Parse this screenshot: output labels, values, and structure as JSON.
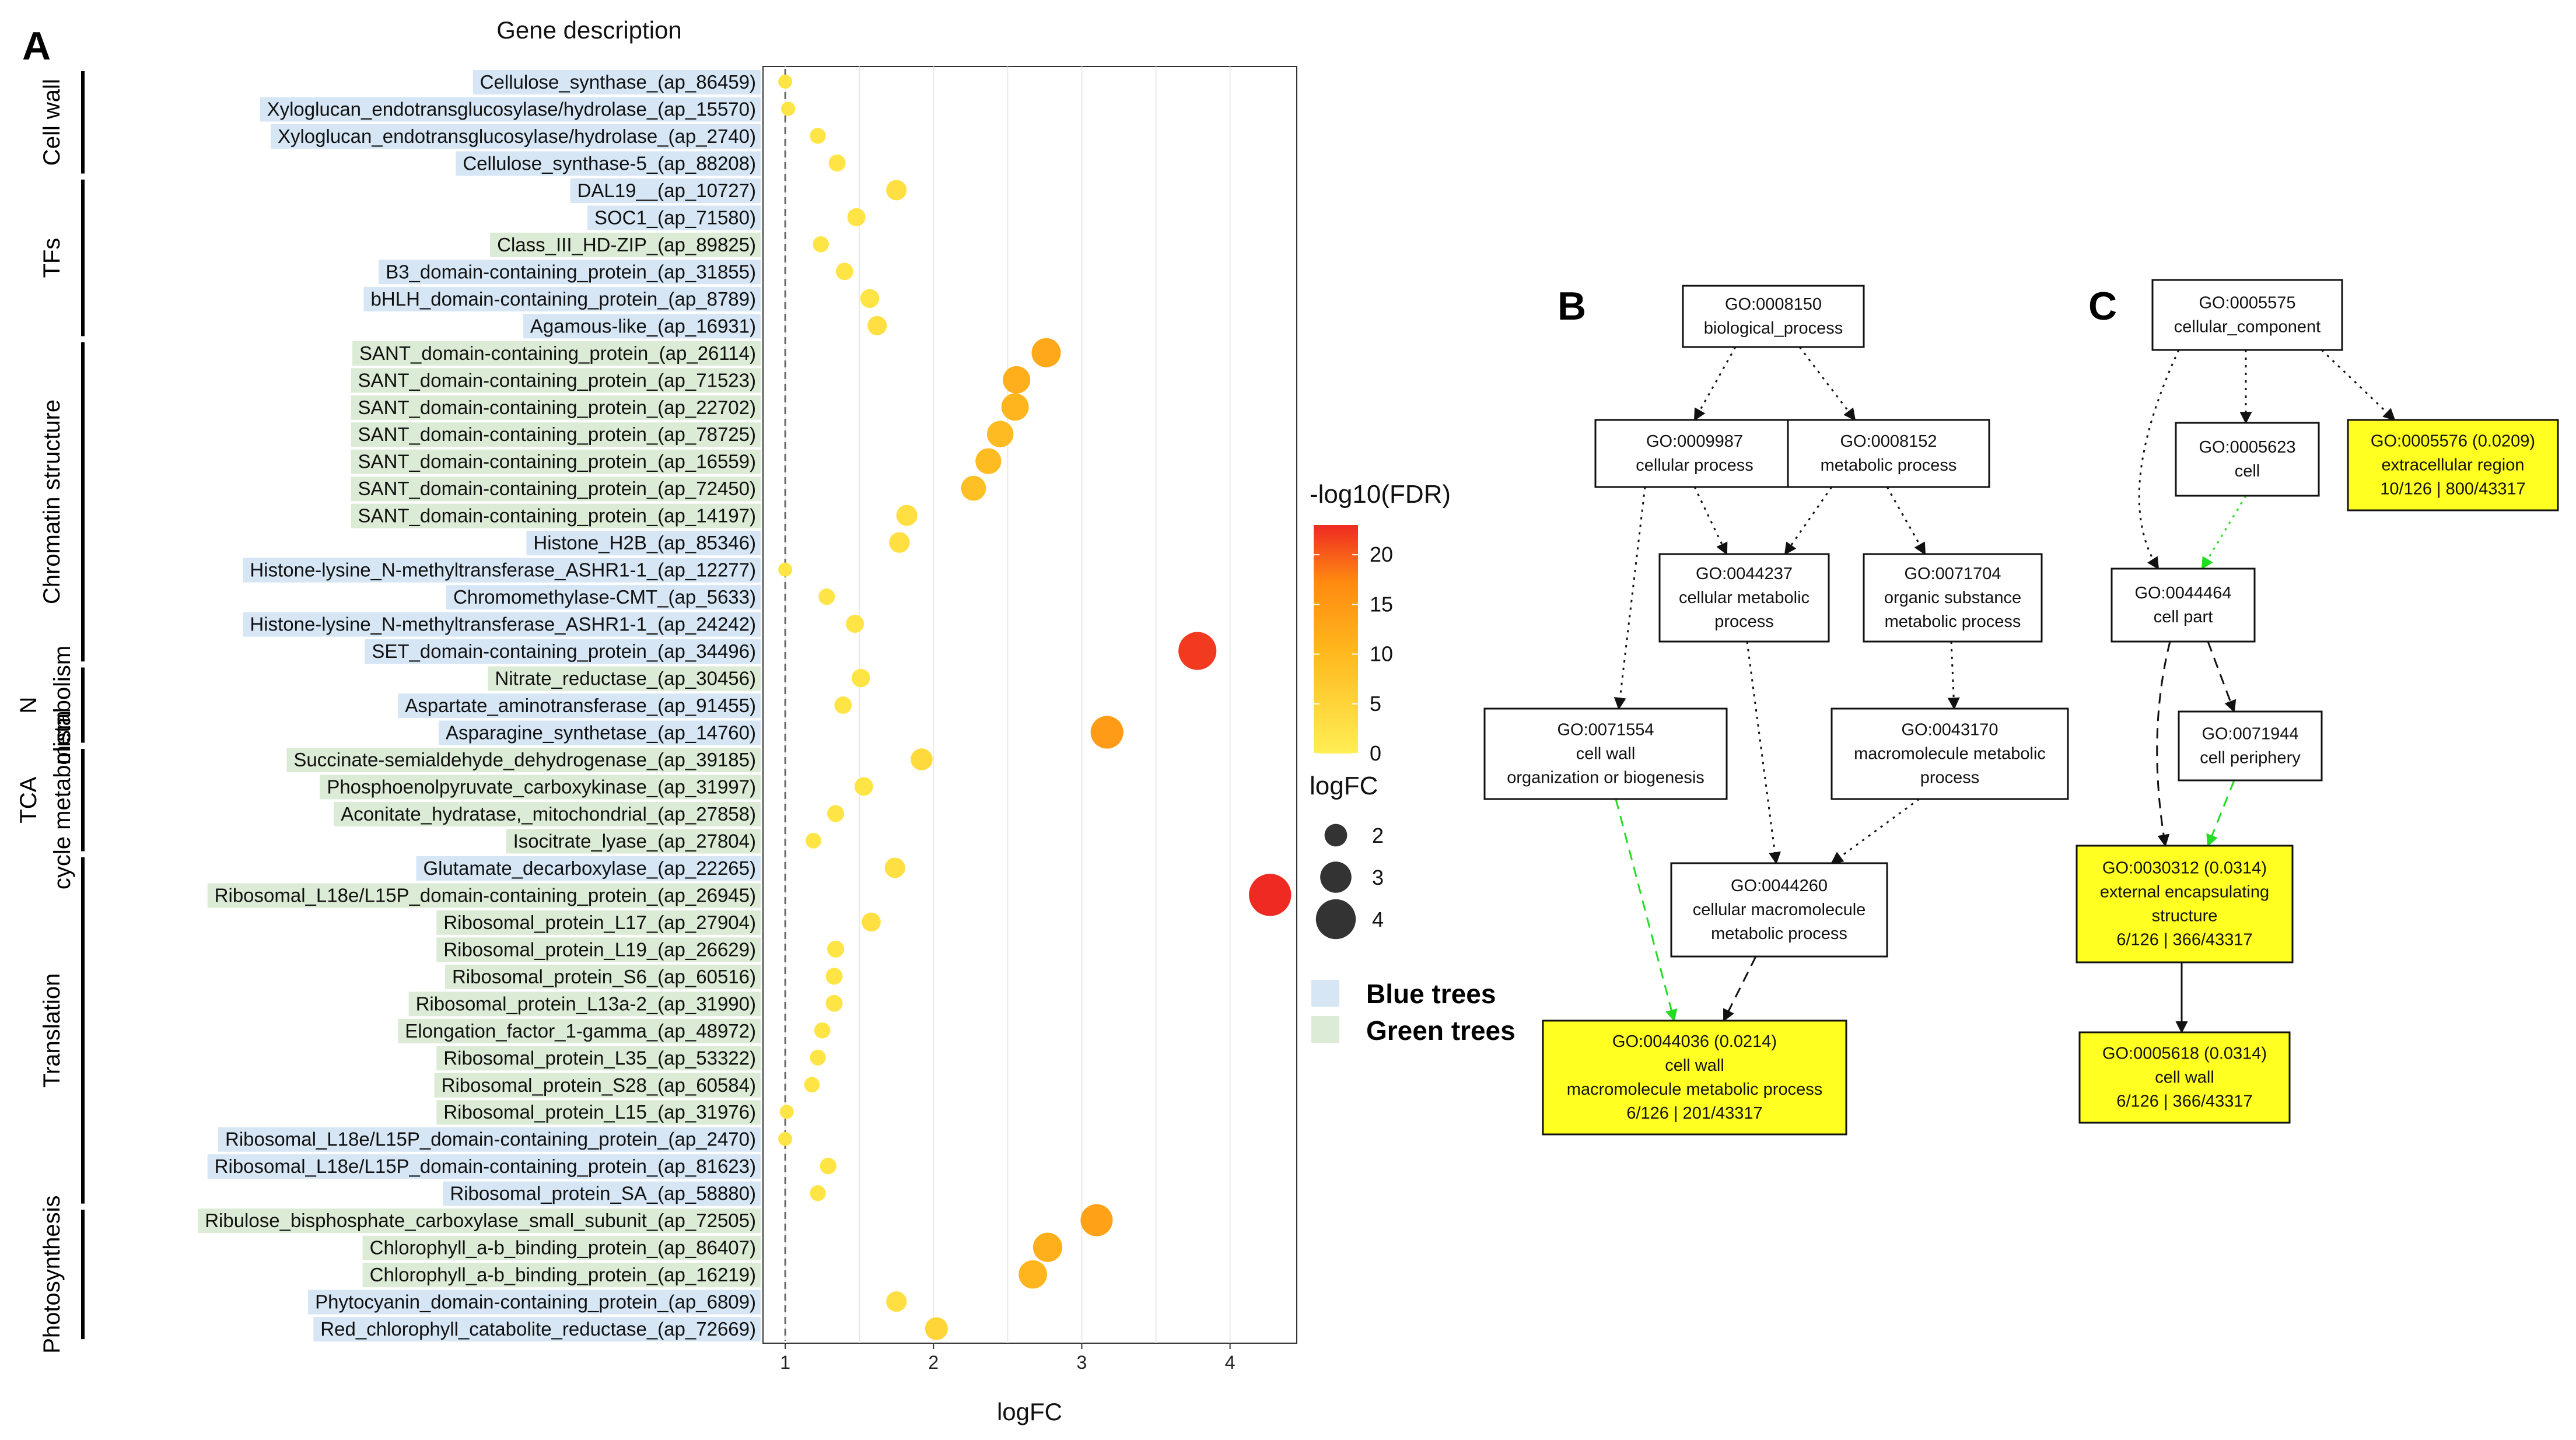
{
  "panel_a": {
    "letter": "A",
    "header": "Gene description",
    "legend": {
      "fdr_title": "-log10(FDR)",
      "fdr_ticks": [
        "20",
        "15",
        "10",
        "5",
        "0"
      ],
      "size_title": "logFC",
      "size_ticks": [
        "2",
        "3",
        "4"
      ],
      "group_blue": "Blue trees",
      "group_green": "Green trees"
    }
  },
  "chart_data": {
    "type": "scatter",
    "title": "",
    "xlabel": "logFC",
    "ylabel": "Gene description",
    "xlim": [
      0.85,
      4.45
    ],
    "x_ticks": [
      1,
      2,
      3,
      4
    ],
    "color_variable": "-log10(FDR)",
    "color_range": [
      0,
      23
    ],
    "size_variable": "logFC",
    "reference_line_x": 1,
    "categories": [
      {
        "name": "Cell wall",
        "genes": [
          {
            "label": "Cellulose_synthase_(ap_86459)",
            "group": "blue",
            "logFC": 1.0,
            "fdr": 1
          },
          {
            "label": "Xyloglucan_endotransglucosylase/hydrolase_(ap_15570)",
            "group": "blue",
            "logFC": 1.02,
            "fdr": 1
          },
          {
            "label": "Xyloglucan_endotransglucosylase/hydrolase_(ap_2740)",
            "group": "blue",
            "logFC": 1.22,
            "fdr": 1
          },
          {
            "label": "Cellulose_synthase-5_(ap_88208)",
            "group": "blue",
            "logFC": 1.35,
            "fdr": 1
          }
        ]
      },
      {
        "name": "TFs",
        "genes": [
          {
            "label": "DAL19__(ap_10727)",
            "group": "blue",
            "logFC": 1.75,
            "fdr": 2
          },
          {
            "label": "SOC1_(ap_71580)",
            "group": "blue",
            "logFC": 1.48,
            "fdr": 1
          },
          {
            "label": "Class_III_HD-ZIP_(ap_89825)",
            "group": "green",
            "logFC": 1.24,
            "fdr": 1
          },
          {
            "label": "B3_domain-containing_protein_(ap_31855)",
            "group": "blue",
            "logFC": 1.4,
            "fdr": 1
          },
          {
            "label": "bHLH_domain-containing_protein_(ap_8789)",
            "group": "blue",
            "logFC": 1.57,
            "fdr": 1
          },
          {
            "label": "Agamous-like_(ap_16931)",
            "group": "blue",
            "logFC": 1.62,
            "fdr": 2
          }
        ]
      },
      {
        "name": "Chromatin structure",
        "genes": [
          {
            "label": "SANT_domain-containing_protein_(ap_26114)",
            "group": "green",
            "logFC": 2.76,
            "fdr": 12
          },
          {
            "label": "SANT_domain-containing_protein_(ap_71523)",
            "group": "green",
            "logFC": 2.56,
            "fdr": 11
          },
          {
            "label": "SANT_domain-containing_protein_(ap_22702)",
            "group": "green",
            "logFC": 2.55,
            "fdr": 10
          },
          {
            "label": "SANT_domain-containing_protein_(ap_78725)",
            "group": "green",
            "logFC": 2.45,
            "fdr": 9
          },
          {
            "label": "SANT_domain-containing_protein_(ap_16559)",
            "group": "green",
            "logFC": 2.37,
            "fdr": 9
          },
          {
            "label": "SANT_domain-containing_protein_(ap_72450)",
            "group": "green",
            "logFC": 2.27,
            "fdr": 8
          },
          {
            "label": "SANT_domain-containing_protein_(ap_14197)",
            "group": "green",
            "logFC": 1.82,
            "fdr": 2
          },
          {
            "label": "Histone_H2B_(ap_85346)",
            "group": "blue",
            "logFC": 1.77,
            "fdr": 2
          },
          {
            "label": "Histone-lysine_N-methyltransferase_ASHR1-1_(ap_12277)",
            "group": "blue",
            "logFC": 1.0,
            "fdr": 1
          },
          {
            "label": "Chromomethylase-CMT_(ap_5633)",
            "group": "blue",
            "logFC": 1.28,
            "fdr": 1
          },
          {
            "label": "Histone-lysine_N-methyltransferase_ASHR1-1_(ap_24242)",
            "group": "blue",
            "logFC": 1.47,
            "fdr": 1
          },
          {
            "label": "SET_domain-containing_protein_(ap_34496)",
            "group": "blue",
            "logFC": 3.78,
            "fdr": 22
          }
        ]
      },
      {
        "name": "N metabolism",
        "genes": [
          {
            "label": "Nitrate_reductase_(ap_30456)",
            "group": "green",
            "logFC": 1.51,
            "fdr": 1
          },
          {
            "label": "Aspartate_aminotransferase_(ap_91455)",
            "group": "blue",
            "logFC": 1.39,
            "fdr": 1
          },
          {
            "label": "Asparagine_synthetase_(ap_14760)",
            "group": "blue",
            "logFC": 3.17,
            "fdr": 14
          }
        ]
      },
      {
        "name": "TCA cycle metabolism",
        "genes": [
          {
            "label": "Succinate-semialdehyde_dehydrogenase_(ap_39185)",
            "group": "green",
            "logFC": 1.92,
            "fdr": 3
          },
          {
            "label": "Phosphoenolpyruvate_carboxykinase_(ap_31997)",
            "group": "green",
            "logFC": 1.53,
            "fdr": 1
          },
          {
            "label": "Aconitate_hydratase,_mitochondrial_(ap_27858)",
            "group": "green",
            "logFC": 1.34,
            "fdr": 1
          },
          {
            "label": "Isocitrate_lyase_(ap_27804)",
            "group": "green",
            "logFC": 1.19,
            "fdr": 1
          }
        ]
      },
      {
        "name": "Translation",
        "genes": [
          {
            "label": "Glutamate_decarboxylase_(ap_22265)",
            "group": "blue",
            "logFC": 1.74,
            "fdr": 2
          },
          {
            "label": "Ribosomal_L18e/L15P_domain-containing_protein_(ap_26945)",
            "group": "green",
            "logFC": 4.27,
            "fdr": 23
          },
          {
            "label": "Ribosomal_protein_L17_(ap_27904)",
            "group": "green",
            "logFC": 1.58,
            "fdr": 2
          },
          {
            "label": "Ribosomal_protein_L19_(ap_26629)",
            "group": "green",
            "logFC": 1.34,
            "fdr": 1
          },
          {
            "label": "Ribosomal_protein_S6_(ap_60516)",
            "group": "green",
            "logFC": 1.33,
            "fdr": 1
          },
          {
            "label": "Ribosomal_protein_L13a-2_(ap_31990)",
            "group": "green",
            "logFC": 1.33,
            "fdr": 1
          },
          {
            "label": "Elongation_factor_1-gamma_(ap_48972)",
            "group": "green",
            "logFC": 1.25,
            "fdr": 1
          },
          {
            "label": "Ribosomal_protein_L35_(ap_53322)",
            "group": "green",
            "logFC": 1.22,
            "fdr": 1
          },
          {
            "label": "Ribosomal_protein_S28_(ap_60584)",
            "group": "green",
            "logFC": 1.18,
            "fdr": 1
          },
          {
            "label": "Ribosomal_protein_L15_(ap_31976)",
            "group": "green",
            "logFC": 1.01,
            "fdr": 1
          },
          {
            "label": "Ribosomal_L18e/L15P_domain-containing_protein_(ap_2470)",
            "group": "blue",
            "logFC": 1.0,
            "fdr": 1
          },
          {
            "label": "Ribosomal_L18e/L15P_domain-containing_protein_(ap_81623)",
            "group": "blue",
            "logFC": 1.29,
            "fdr": 1
          },
          {
            "label": "Ribosomal_protein_SA_(ap_58880)",
            "group": "blue",
            "logFC": 1.22,
            "fdr": 1
          }
        ]
      },
      {
        "name": "Photosynthesis",
        "genes": [
          {
            "label": "Ribulose_bisphosphate_carboxylase_small_subunit_(ap_72505)",
            "group": "green",
            "logFC": 3.1,
            "fdr": 13
          },
          {
            "label": "Chlorophyll_a-b_binding_protein_(ap_86407)",
            "group": "green",
            "logFC": 2.77,
            "fdr": 11
          },
          {
            "label": "Chlorophyll_a-b_binding_protein_(ap_16219)",
            "group": "green",
            "logFC": 2.67,
            "fdr": 10
          },
          {
            "label": "Phytocyanin_domain-containing_protein_(ap_6809)",
            "group": "blue",
            "logFC": 1.75,
            "fdr": 2
          },
          {
            "label": "Red_chlorophyll_catabolite_reductase_(ap_72669)",
            "group": "blue",
            "logFC": 2.02,
            "fdr": 4
          }
        ]
      }
    ]
  },
  "colors": {
    "blue_tree_band": "#d6e6f5",
    "green_tree_band": "#dcebd5",
    "go_highlight": "#ffff22",
    "fdr_low": "#ffe94a",
    "fdr_high": "#ef2a2a",
    "green_edge": "#22dd22"
  },
  "panel_b": {
    "letter": "B",
    "nodes": [
      {
        "id": "gp",
        "lines": [
          "GO:0008150",
          "biological_process"
        ],
        "highlight": false
      },
      {
        "id": "cp",
        "lines": [
          "GO:0009987",
          "cellular process"
        ],
        "highlight": false
      },
      {
        "id": "mp",
        "lines": [
          "GO:0008152",
          "metabolic process"
        ],
        "highlight": false
      },
      {
        "id": "cmp",
        "lines": [
          "GO:0044237",
          "cellular metabolic",
          "process"
        ],
        "highlight": false
      },
      {
        "id": "osm",
        "lines": [
          "GO:0071704",
          "organic substance",
          "metabolic process"
        ],
        "highlight": false
      },
      {
        "id": "cwo",
        "lines": [
          "GO:0071554",
          "cell wall",
          "organization or biogenesis"
        ],
        "highlight": false
      },
      {
        "id": "mmp",
        "lines": [
          "GO:0043170",
          "macromolecule metabolic",
          "process"
        ],
        "highlight": false
      },
      {
        "id": "cmm",
        "lines": [
          "GO:0044260",
          "cellular macromolecule",
          "metabolic process"
        ],
        "highlight": false
      },
      {
        "id": "cwm",
        "lines": [
          "GO:0044036 (0.0214)",
          "cell wall",
          "macromolecule metabolic process",
          "6/126 | 201/43317"
        ],
        "highlight": true
      }
    ]
  },
  "panel_c": {
    "letter": "C",
    "nodes": [
      {
        "id": "cc",
        "lines": [
          "GO:0005575",
          "cellular_component"
        ],
        "highlight": false
      },
      {
        "id": "cell",
        "lines": [
          "GO:0005623",
          "cell"
        ],
        "highlight": false
      },
      {
        "id": "er",
        "lines": [
          "GO:0005576 (0.0209)",
          "extracellular region",
          "10/126 | 800/43317"
        ],
        "highlight": true
      },
      {
        "id": "cpart",
        "lines": [
          "GO:0044464",
          "cell part"
        ],
        "highlight": false
      },
      {
        "id": "cper",
        "lines": [
          "GO:0071944",
          "cell periphery"
        ],
        "highlight": false
      },
      {
        "id": "ees",
        "lines": [
          "GO:0030312 (0.0314)",
          "external encapsulating",
          "structure",
          "6/126 | 366/43317"
        ],
        "highlight": true
      },
      {
        "id": "cw",
        "lines": [
          "GO:0005618 (0.0314)",
          "cell wall",
          "6/126 | 366/43317"
        ],
        "highlight": true
      }
    ]
  }
}
